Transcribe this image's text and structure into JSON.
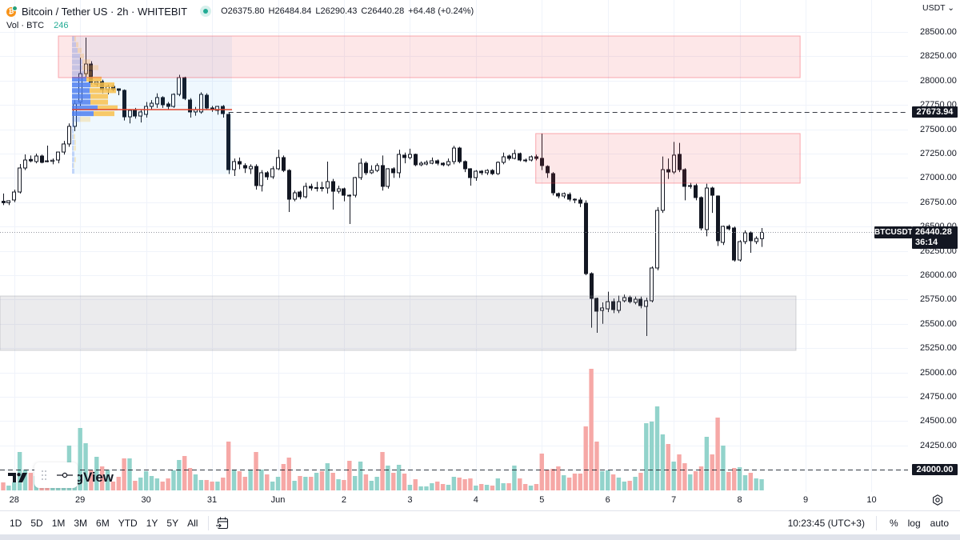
{
  "header": {
    "title": "Bitcoin / Tether US · 2h · WHITEBIT",
    "coin_icon": "bitcoin-tether-icon",
    "ohlc": {
      "open": "O26375.80",
      "high": "H26484.84",
      "low": "L26290.43",
      "close": "C26440.28",
      "change": "+64.48 (+0.24%)"
    },
    "vol_label": "Vol · BTC",
    "vol_value": "246"
  },
  "price_axis": {
    "currency": "USDT ⌄",
    "line_tag": "27673.94",
    "symbol_tag": "BTCUSDT",
    "last_price": "26440.28",
    "countdown": "36:14",
    "level_tag": "24000.00"
  },
  "time_axis": {
    "settings_icon": "gear-icon"
  },
  "logo": {
    "text": "TradingView"
  },
  "toolbar": {
    "ranges": [
      "1D",
      "5D",
      "1M",
      "3M",
      "6M",
      "YTD",
      "1Y",
      "5Y",
      "All"
    ],
    "clock": "10:23:45 (UTC+3)",
    "percent": "%",
    "log": "log",
    "auto": "auto"
  },
  "chart_data": {
    "type": "candlestick",
    "title": "Bitcoin / Tether US · 2h · WHITEBIT",
    "symbol": "BTCUSDT",
    "interval": "2h",
    "ylabel": "USDT",
    "xlabel": "",
    "ylim": [
      23771,
      28829
    ],
    "grid": true,
    "price_ticks": [
      "28500.00",
      "28250.00",
      "28000.00",
      "27750.00",
      "27500.00",
      "27250.00",
      "27000.00",
      "26750.00",
      "26500.00",
      "26250.00",
      "26000.00",
      "25750.00",
      "25500.00",
      "25250.00",
      "25000.00",
      "24750.00",
      "24500.00",
      "24250.00",
      "24000.00"
    ],
    "x_ticks": [
      {
        "label": "28",
        "bar": 2
      },
      {
        "label": "29",
        "bar": 14
      },
      {
        "label": "30",
        "bar": 26
      },
      {
        "label": "31",
        "bar": 38
      },
      {
        "label": "Jun",
        "bar": 50
      },
      {
        "label": "2",
        "bar": 62
      },
      {
        "label": "3",
        "bar": 74
      },
      {
        "label": "4",
        "bar": 86
      },
      {
        "label": "5",
        "bar": 98
      },
      {
        "label": "6",
        "bar": 110
      },
      {
        "label": "7",
        "bar": 122
      },
      {
        "label": "8",
        "bar": 134
      },
      {
        "label": "9",
        "bar": 146
      },
      {
        "label": "10",
        "bar": 158
      }
    ],
    "ohlc_fields": [
      "open",
      "high",
      "low",
      "close"
    ],
    "candles": [
      [
        26760,
        26840,
        26720,
        26745
      ],
      [
        26745,
        26770,
        26720,
        26765
      ],
      [
        26773,
        26880,
        26750,
        26855
      ],
      [
        26855,
        27143,
        26840,
        27102
      ],
      [
        27102,
        27242,
        27080,
        27184
      ],
      [
        27190,
        27230,
        27160,
        27175
      ],
      [
        27168,
        27250,
        27150,
        27225
      ],
      [
        27225,
        27240,
        27150,
        27160
      ],
      [
        27175,
        27332,
        27160,
        27170
      ],
      [
        27170,
        27200,
        27140,
        27182
      ],
      [
        27184,
        27266,
        27150,
        27266
      ],
      [
        27266,
        27380,
        27240,
        27349
      ],
      [
        27349,
        27560,
        27320,
        27530
      ],
      [
        27530,
        27800,
        27480,
        27760
      ],
      [
        27780,
        28237,
        27740,
        28072
      ],
      [
        28072,
        28442,
        28040,
        28171
      ],
      [
        28171,
        28200,
        27960,
        27982
      ],
      [
        27965,
        28000,
        27940,
        27990
      ],
      [
        27990,
        28010,
        27870,
        27908
      ],
      [
        27908,
        27960,
        27860,
        27941
      ],
      [
        27941,
        27960,
        27890,
        27908
      ],
      [
        27916,
        27920,
        27850,
        27900
      ],
      [
        27900,
        27910,
        27590,
        27628
      ],
      [
        27628,
        27700,
        27560,
        27694
      ],
      [
        27694,
        27720,
        27610,
        27636
      ],
      [
        27636,
        27700,
        27570,
        27678
      ],
      [
        27653,
        27780,
        27620,
        27735
      ],
      [
        27735,
        27800,
        27700,
        27768
      ],
      [
        27760,
        27870,
        27720,
        27826
      ],
      [
        27826,
        27840,
        27720,
        27752
      ],
      [
        27760,
        27780,
        27700,
        27735
      ],
      [
        27735,
        27870,
        27720,
        27859
      ],
      [
        27859,
        28060,
        27840,
        28031
      ],
      [
        28031,
        28040,
        27800,
        27817
      ],
      [
        27801,
        27820,
        27620,
        27678
      ],
      [
        27678,
        27730,
        27640,
        27702
      ],
      [
        27678,
        27880,
        27660,
        27859
      ],
      [
        27850,
        27870,
        27700,
        27719
      ],
      [
        27719,
        27740,
        27680,
        27702
      ],
      [
        27694,
        27740,
        27650,
        27735
      ],
      [
        27735,
        27750,
        27620,
        27661
      ],
      [
        27653,
        27670,
        27040,
        27085
      ],
      [
        27085,
        27200,
        27020,
        27168
      ],
      [
        27168,
        27210,
        27090,
        27143
      ],
      [
        27127,
        27150,
        27050,
        27102
      ],
      [
        27094,
        27140,
        27040,
        27118
      ],
      [
        27118,
        27140,
        26880,
        26921
      ],
      [
        26921,
        27080,
        26860,
        27053
      ],
      [
        27053,
        27070,
        26980,
        27011
      ],
      [
        27011,
        27120,
        26990,
        27094
      ],
      [
        27094,
        27290,
        27080,
        27209
      ],
      [
        27209,
        27230,
        27060,
        27077
      ],
      [
        27077,
        27090,
        26650,
        26781
      ],
      [
        26781,
        26870,
        26760,
        26847
      ],
      [
        26855,
        26870,
        26780,
        26806
      ],
      [
        26806,
        26950,
        26790,
        26913
      ],
      [
        26913,
        26940,
        26870,
        26896
      ],
      [
        26896,
        26960,
        26860,
        26900
      ],
      [
        26900,
        26960,
        26860,
        26896
      ],
      [
        26896,
        27168,
        26840,
        26962
      ],
      [
        26962,
        26990,
        26674,
        26863
      ],
      [
        26863,
        26920,
        26840,
        26888
      ],
      [
        26888,
        26900,
        26760,
        26822
      ],
      [
        26822,
        26830,
        26526,
        26818
      ],
      [
        26822,
        27010,
        26800,
        27003
      ],
      [
        27003,
        27200,
        26980,
        27151
      ],
      [
        27151,
        27170,
        27030,
        27053
      ],
      [
        27053,
        27130,
        27040,
        27077
      ],
      [
        27077,
        27150,
        27060,
        27127
      ],
      [
        27127,
        27230,
        26870,
        26913
      ],
      [
        26913,
        27100,
        26890,
        27094
      ],
      [
        27094,
        27110,
        27000,
        27053
      ],
      [
        27053,
        27290,
        27000,
        27242
      ],
      [
        27234,
        27260,
        27150,
        27209
      ],
      [
        27209,
        27300,
        27190,
        27242
      ],
      [
        27242,
        27250,
        27120,
        27135
      ],
      [
        27135,
        27170,
        27120,
        27151
      ],
      [
        27143,
        27180,
        27130,
        27160
      ],
      [
        27151,
        27210,
        27140,
        27176
      ],
      [
        27176,
        27190,
        27130,
        27151
      ],
      [
        27151,
        27160,
        27120,
        27135
      ],
      [
        27135,
        27200,
        27120,
        27168
      ],
      [
        27168,
        27330,
        27140,
        27307
      ],
      [
        27307,
        27320,
        27150,
        27168
      ],
      [
        27168,
        27180,
        27060,
        27094
      ],
      [
        27094,
        27100,
        26920,
        27003
      ],
      [
        27003,
        27080,
        26970,
        27069
      ],
      [
        27069,
        27080,
        27030,
        27053
      ],
      [
        27053,
        27090,
        27030,
        27077
      ],
      [
        27077,
        27090,
        27030,
        27044
      ],
      [
        27044,
        27170,
        27030,
        27160
      ],
      [
        27160,
        27260,
        27140,
        27217
      ],
      [
        27225,
        27240,
        27180,
        27201
      ],
      [
        27201,
        27290,
        27190,
        27250
      ],
      [
        27250,
        27260,
        27170,
        27184
      ],
      [
        27184,
        27200,
        27160,
        27182
      ],
      [
        27184,
        27230,
        27170,
        27217
      ],
      [
        27217,
        27240,
        27180,
        27200
      ],
      [
        27201,
        27456,
        27080,
        27127
      ],
      [
        27118,
        27130,
        27000,
        27053
      ],
      [
        27044,
        27060,
        26820,
        26847
      ],
      [
        26839,
        26850,
        26790,
        26814
      ],
      [
        26814,
        26850,
        26790,
        26839
      ],
      [
        26830,
        26850,
        26760,
        26781
      ],
      [
        26781,
        26790,
        26740,
        26773
      ],
      [
        26773,
        26800,
        26700,
        26740
      ],
      [
        26740,
        26770,
        26000,
        26016
      ],
      [
        26016,
        26030,
        25460,
        25761
      ],
      [
        25761,
        25770,
        25408,
        25630
      ],
      [
        25638,
        25720,
        25500,
        25663
      ],
      [
        25654,
        25830,
        25620,
        25728
      ],
      [
        25728,
        25760,
        25610,
        25646
      ],
      [
        25638,
        25790,
        25610,
        25728
      ],
      [
        25737,
        25800,
        25720,
        25770
      ],
      [
        25770,
        25790,
        25710,
        25728
      ],
      [
        25720,
        25780,
        25700,
        25753
      ],
      [
        25753,
        25780,
        25660,
        25687
      ],
      [
        25679,
        25770,
        25375,
        25737
      ],
      [
        25737,
        26090,
        25720,
        26074
      ],
      [
        26074,
        26700,
        26050,
        26666
      ],
      [
        26666,
        27220,
        26640,
        27085
      ],
      [
        27085,
        27200,
        26990,
        27061
      ],
      [
        27061,
        27370,
        27040,
        27234
      ],
      [
        27242,
        27360,
        27060,
        27085
      ],
      [
        27085,
        27100,
        26770,
        26913
      ],
      [
        26913,
        26950,
        26890,
        26921
      ],
      [
        26921,
        26940,
        26770,
        26798
      ],
      [
        26798,
        26810,
        26460,
        26485
      ],
      [
        26469,
        26940,
        26400,
        26896
      ],
      [
        26896,
        26910,
        26640,
        26822
      ],
      [
        26814,
        26820,
        26300,
        26354
      ],
      [
        26337,
        26510,
        26310,
        26502
      ],
      [
        26502,
        26520,
        26460,
        26477
      ],
      [
        26485,
        26500,
        26140,
        26156
      ],
      [
        26156,
        26360,
        26140,
        26345
      ],
      [
        26345,
        26460,
        26320,
        26436
      ],
      [
        26436,
        26450,
        26230,
        26354
      ],
      [
        26345,
        26400,
        26320,
        26378
      ],
      [
        26375.8,
        26484.84,
        26290.43,
        26440.28
      ]
    ],
    "volume_unit": "BTC",
    "volume": [
      176,
      106,
      176,
      845,
      458,
      387,
      317,
      282,
      246,
      211,
      352,
      422,
      986,
      528,
      1373,
      1038,
      440,
      739,
      528,
      458,
      194,
      299,
      704,
      704,
      211,
      282,
      422,
      317,
      264,
      194,
      264,
      440,
      669,
      757,
      493,
      352,
      229,
      229,
      194,
      194,
      282,
      1074,
      458,
      422,
      299,
      458,
      845,
      458,
      352,
      194,
      299,
      581,
      722,
      211,
      317,
      299,
      299,
      387,
      422,
      598,
      387,
      246,
      229,
      651,
      317,
      634,
      352,
      211,
      299,
      845,
      546,
      387,
      563,
      370,
      123,
      246,
      88,
      88,
      158,
      194,
      141,
      123,
      299,
      282,
      246,
      264,
      106,
      141,
      123,
      106,
      264,
      158,
      158,
      546,
      264,
      141,
      106,
      141,
      810,
      458,
      475,
      528,
      334,
      282,
      370,
      370,
      1408,
      2675,
      1074,
      422,
      440,
      352,
      282,
      194,
      211,
      299,
      387,
      1478,
      1514,
      1848,
      1232,
      1021,
      634,
      792,
      598,
      352,
      422,
      528,
      1179,
      792,
      1602,
      986,
      405,
      493,
      510,
      334,
      387,
      264,
      246
    ],
    "zones": [
      {
        "name": "upper-resistance-zone",
        "from_bar": 10.04,
        "to_bar": 145.0,
        "top": 28459,
        "bottom": 28031,
        "color": "#f23645"
      },
      {
        "name": "mid-resistance-zone",
        "from_bar": 96.9,
        "to_bar": 145.0,
        "top": 27456,
        "bottom": 26946,
        "color": "#f23645"
      },
      {
        "name": "support-zone",
        "from_bar": -1.0,
        "to_bar": 144.25,
        "top": 25786,
        "bottom": 25227,
        "color": "#787b86"
      }
    ],
    "volume_profile": {
      "from_bar": 12.52,
      "to_bar": 41.63,
      "top": 28459,
      "bottom": 27040,
      "poc": 27702,
      "value_area_rows": [
        7,
        13
      ],
      "rows_up_down": [
        [
          3,
          2
        ],
        [
          5,
          3
        ],
        [
          7,
          5
        ],
        [
          10,
          5
        ],
        [
          13,
          10
        ],
        [
          13,
          20
        ],
        [
          15,
          10
        ],
        [
          18,
          19
        ],
        [
          23,
          30
        ],
        [
          22,
          33
        ],
        [
          23,
          22
        ],
        [
          23,
          22
        ],
        [
          32,
          25
        ],
        [
          27,
          26
        ],
        [
          10,
          13
        ],
        [
          3,
          0
        ],
        [
          2,
          0
        ],
        [
          2,
          2
        ],
        [
          3,
          2
        ],
        [
          2,
          3
        ],
        [
          3,
          0
        ],
        [
          3,
          2
        ],
        [
          2,
          1
        ],
        [
          3,
          0
        ]
      ]
    },
    "horizontal_lines": [
      {
        "name": "level-27673",
        "price": 27673.94,
        "from_bar": 41,
        "style": "dashed"
      },
      {
        "name": "level-24000",
        "price": 24000.0,
        "from_bar": -1,
        "style": "dashed"
      },
      {
        "name": "last-price-line",
        "price": 26440.28,
        "from_bar": -1,
        "style": "dotted"
      }
    ],
    "last_price": 26440.28,
    "colors": {
      "candle_up_fill": "#ffffff",
      "candle_down_fill": "#131722",
      "candle_border": "#131722",
      "volume_up": "#92d3cb",
      "volume_down": "#f6a8a6",
      "vp_up": "#4f7ff0",
      "vp_down": "#f8c14d",
      "vp_box": "#2196f3",
      "poc": "#e0462f",
      "grid": "#f0f3fa",
      "line": "#131722",
      "last_price_line": "#9598a1"
    }
  }
}
